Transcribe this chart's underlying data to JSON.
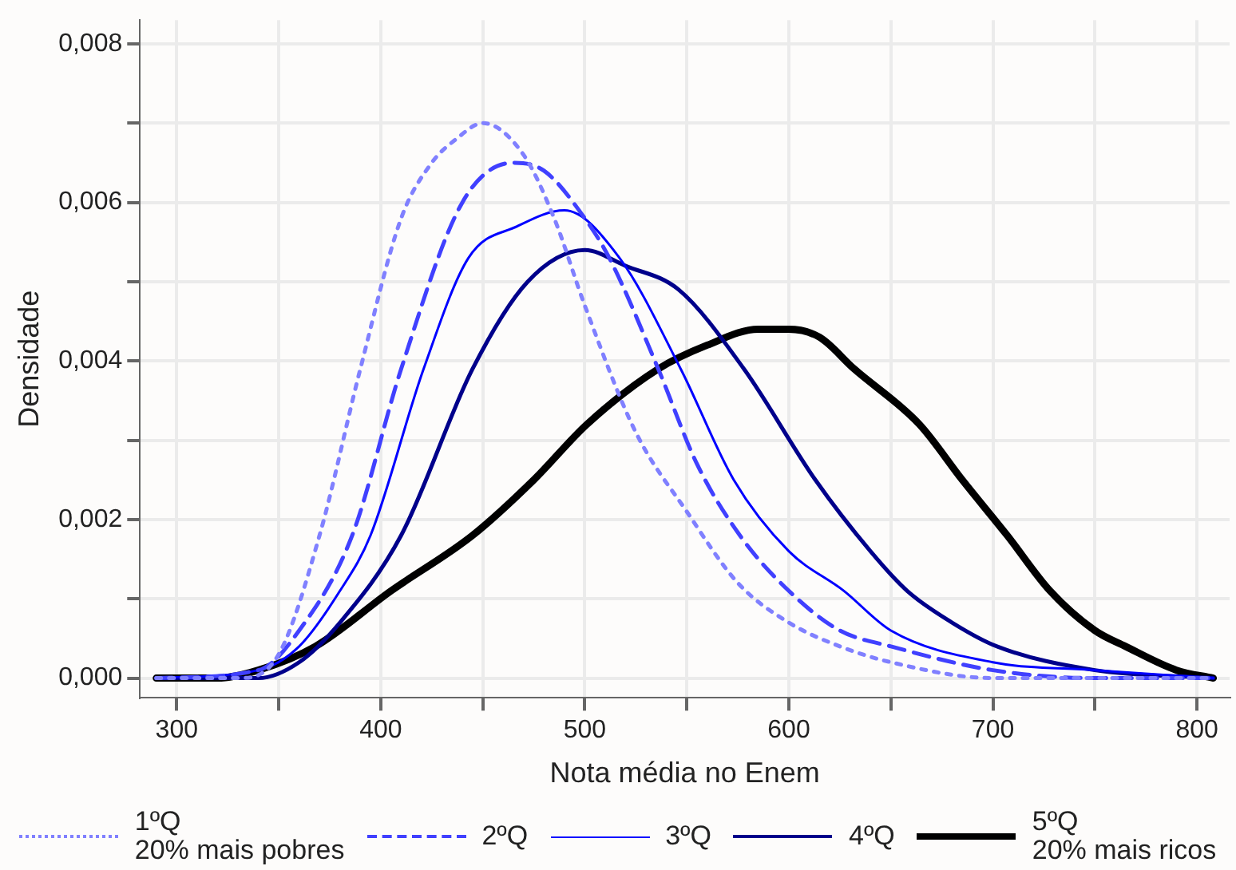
{
  "chart_data": {
    "type": "line",
    "xlabel": "Nota média no Enem",
    "ylabel": "Densidade",
    "xlim": [
      282,
      816
    ],
    "ylim": [
      -0.00025,
      0.0083
    ],
    "xticks": [
      300,
      {
        "value": 350,
        "label": null
      },
      400,
      {
        "value": 450,
        "label": null
      },
      500,
      {
        "value": 550,
        "label": null
      },
      600,
      {
        "value": 650,
        "label": null
      },
      700,
      {
        "value": 750,
        "label": null
      },
      800
    ],
    "yticks": [
      {
        "value": 0,
        "label": "0,000"
      },
      {
        "value": 0.001,
        "label": null
      },
      {
        "value": 0.002,
        "label": "0,002"
      },
      {
        "value": 0.003,
        "label": null
      },
      {
        "value": 0.004,
        "label": "0,004"
      },
      {
        "value": 0.005,
        "label": null
      },
      {
        "value": 0.006,
        "label": "0,006"
      },
      {
        "value": 0.007,
        "label": null
      },
      {
        "value": 0.008,
        "label": "0,008"
      }
    ],
    "grid": true,
    "legend": "bottom",
    "marker": "none",
    "series": [
      {
        "name": "1ºQ\n20% mais pobres",
        "color": "#8080ff",
        "line_style": "dotted",
        "x": [
          290,
          330,
          350,
          370,
          390,
          410,
          425,
          437,
          450,
          470,
          485,
          500,
          525,
          550,
          575,
          600,
          625,
          650,
          700,
          750,
          808
        ],
        "values": [
          0,
          0,
          0.0003,
          0.0018,
          0.0039,
          0.0058,
          0.0065,
          0.0068,
          0.007,
          0.0066,
          0.0058,
          0.0047,
          0.0031,
          0.0021,
          0.0012,
          0.0007,
          0.0004,
          0.0002,
          0,
          0,
          0
        ]
      },
      {
        "name": "2ºQ",
        "color": "#4040ff",
        "line_style": "dashed",
        "x": [
          290,
          340,
          360,
          386,
          410,
          440,
          465,
          480,
          500,
          512,
          536,
          555,
          576,
          600,
          625,
          650,
          700,
          750,
          808
        ],
        "values": [
          0,
          0.0001,
          0.0006,
          0.0018,
          0.0039,
          0.006,
          0.0065,
          0.0064,
          0.0058,
          0.0053,
          0.0039,
          0.0027,
          0.0018,
          0.0011,
          0.0006,
          0.0004,
          0.0001,
          0,
          0
        ]
      },
      {
        "name": "3ºQ",
        "color": "#0000ff",
        "line_style": "solid",
        "x": [
          290,
          340,
          360,
          380,
          395,
          421,
          443,
          467,
          490,
          517,
          547,
          573,
          600,
          627,
          650,
          700,
          750,
          808
        ],
        "values": [
          0,
          0.0001,
          0.0004,
          0.0011,
          0.0018,
          0.0039,
          0.0053,
          0.0057,
          0.0059,
          0.0053,
          0.0039,
          0.0025,
          0.0016,
          0.0011,
          0.0006,
          0.0002,
          0.0001,
          0
        ]
      },
      {
        "name": "4ºQ",
        "color": "#00008b",
        "line_style": "solid",
        "x": [
          290,
          340,
          360,
          380,
          410,
          445,
          472,
          500,
          520,
          546,
          578,
          613,
          640,
          658,
          680,
          702,
          750,
          808
        ],
        "values": [
          0,
          0,
          0.0002,
          0.0007,
          0.0018,
          0.0039,
          0.005,
          0.0054,
          0.0052,
          0.0049,
          0.0039,
          0.0025,
          0.0016,
          0.0011,
          0.0007,
          0.0004,
          0.0001,
          0
        ]
      },
      {
        "name": "5ºQ\n20% mais ricos",
        "color": "#000000",
        "line_style": "solid",
        "x": [
          290,
          320,
          340,
          368,
          405,
          445,
          475,
          501,
          536,
          560,
          585,
          600,
          615,
          632,
          664,
          685,
          707,
          728,
          750,
          765,
          790,
          808
        ],
        "values": [
          0,
          0,
          0.0001,
          0.0004,
          0.0011,
          0.0018,
          0.0025,
          0.0032,
          0.0039,
          0.0042,
          0.0044,
          0.0044,
          0.0043,
          0.0039,
          0.0032,
          0.0025,
          0.0018,
          0.0011,
          0.0006,
          0.0004,
          0.0001,
          0
        ]
      }
    ]
  }
}
